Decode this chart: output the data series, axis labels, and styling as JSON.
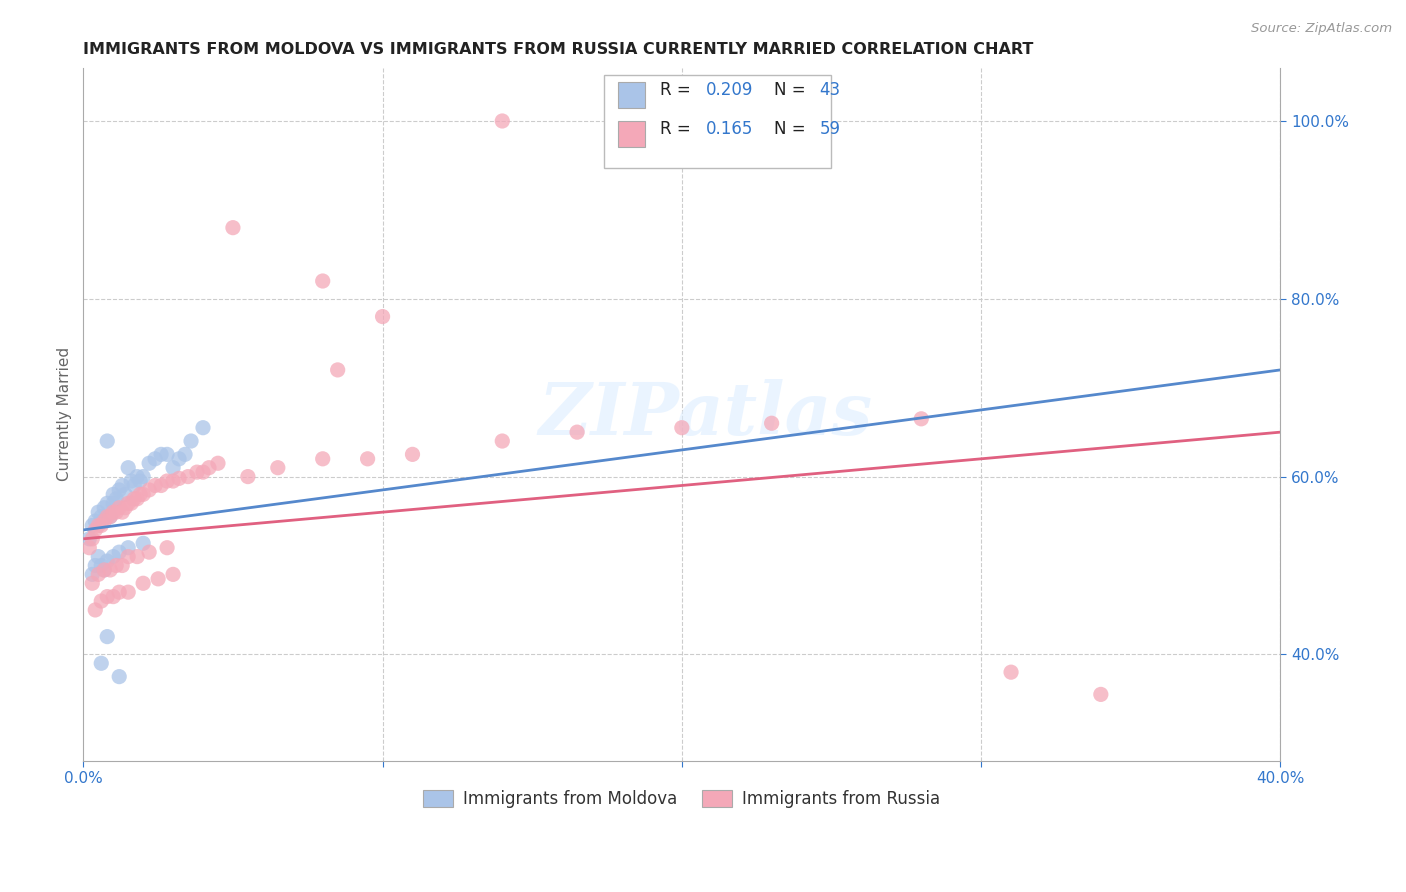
{
  "title": "IMMIGRANTS FROM MOLDOVA VS IMMIGRANTS FROM RUSSIA CURRENTLY MARRIED CORRELATION CHART",
  "source": "Source: ZipAtlas.com",
  "ylabel": "Currently Married",
  "moldova_color": "#aac4e8",
  "russia_color": "#f4a8b8",
  "moldova_line_color": "#5588cc",
  "russia_line_color": "#e06080",
  "r_value_color": "#3377cc",
  "n_value_color": "#3377cc",
  "xlim": [
    0.0,
    0.4
  ],
  "ylim": [
    0.28,
    1.06
  ],
  "yticks": [
    0.4,
    0.6,
    0.8,
    1.0
  ],
  "ytick_labels": [
    "40.0%",
    "60.0%",
    "80.0%",
    "100.0%"
  ],
  "xtick_labels": [
    "0.0%",
    "40.0%"
  ],
  "background_color": "#ffffff",
  "grid_color": "#cccccc",
  "watermark": "ZIPatlas",
  "moldova_x": [
    0.002,
    0.003,
    0.004,
    0.005,
    0.006,
    0.007,
    0.008,
    0.008,
    0.009,
    0.01,
    0.01,
    0.011,
    0.012,
    0.013,
    0.014,
    0.015,
    0.016,
    0.017,
    0.018,
    0.019,
    0.02,
    0.022,
    0.024,
    0.026,
    0.028,
    0.03,
    0.032,
    0.034,
    0.036,
    0.04,
    0.003,
    0.004,
    0.005,
    0.006,
    0.007,
    0.008,
    0.01,
    0.012,
    0.015,
    0.02,
    0.006,
    0.008,
    0.012
  ],
  "moldova_y": [
    0.53,
    0.545,
    0.55,
    0.56,
    0.555,
    0.565,
    0.57,
    0.64,
    0.555,
    0.57,
    0.58,
    0.575,
    0.585,
    0.59,
    0.58,
    0.61,
    0.595,
    0.59,
    0.6,
    0.595,
    0.6,
    0.615,
    0.62,
    0.625,
    0.625,
    0.61,
    0.62,
    0.625,
    0.64,
    0.655,
    0.49,
    0.5,
    0.51,
    0.5,
    0.495,
    0.505,
    0.51,
    0.515,
    0.52,
    0.525,
    0.39,
    0.42,
    0.375
  ],
  "russia_x": [
    0.002,
    0.003,
    0.004,
    0.005,
    0.006,
    0.007,
    0.008,
    0.009,
    0.01,
    0.011,
    0.012,
    0.013,
    0.014,
    0.015,
    0.016,
    0.017,
    0.018,
    0.019,
    0.02,
    0.022,
    0.024,
    0.026,
    0.028,
    0.03,
    0.032,
    0.035,
    0.038,
    0.04,
    0.042,
    0.045,
    0.003,
    0.005,
    0.007,
    0.009,
    0.011,
    0.013,
    0.015,
    0.018,
    0.022,
    0.028,
    0.004,
    0.006,
    0.008,
    0.01,
    0.012,
    0.015,
    0.02,
    0.025,
    0.03,
    0.055,
    0.065,
    0.08,
    0.095,
    0.11,
    0.14,
    0.165,
    0.2,
    0.23,
    0.28
  ],
  "russia_y": [
    0.52,
    0.53,
    0.54,
    0.545,
    0.545,
    0.55,
    0.555,
    0.555,
    0.56,
    0.56,
    0.565,
    0.56,
    0.565,
    0.57,
    0.57,
    0.575,
    0.575,
    0.58,
    0.58,
    0.585,
    0.59,
    0.59,
    0.595,
    0.595,
    0.598,
    0.6,
    0.605,
    0.605,
    0.61,
    0.615,
    0.48,
    0.49,
    0.495,
    0.495,
    0.5,
    0.5,
    0.51,
    0.51,
    0.515,
    0.52,
    0.45,
    0.46,
    0.465,
    0.465,
    0.47,
    0.47,
    0.48,
    0.485,
    0.49,
    0.6,
    0.61,
    0.62,
    0.62,
    0.625,
    0.64,
    0.65,
    0.655,
    0.66,
    0.665
  ],
  "russia_outliers_x": [
    0.14,
    0.05,
    0.08,
    0.1,
    0.085,
    0.31,
    0.34
  ],
  "russia_outliers_y": [
    1.0,
    0.88,
    0.82,
    0.78,
    0.72,
    0.38,
    0.355
  ],
  "moldova_line_x0": 0.0,
  "moldova_line_y0": 0.54,
  "moldova_line_x1": 0.4,
  "moldova_line_y1": 0.72,
  "russia_line_x0": 0.0,
  "russia_line_y0": 0.53,
  "russia_line_x1": 0.4,
  "russia_line_y1": 0.65
}
